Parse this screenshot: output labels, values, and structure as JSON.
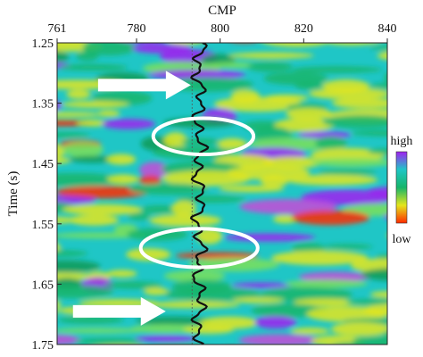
{
  "chart_data": {
    "type": "heatmap",
    "title": "",
    "xlabel": "CMP",
    "ylabel": "Time (s)",
    "xlim": [
      761,
      840
    ],
    "ylim": [
      1.25,
      1.75
    ],
    "y_inverted": true,
    "x_ticks": [
      "761",
      "780",
      "800",
      "820",
      "840"
    ],
    "y_ticks": [
      "1.25",
      "1.35",
      "1.45",
      "1.55",
      "1.65",
      "1.75"
    ],
    "grid": false,
    "colorbar": {
      "top_label": "high",
      "bottom_label": "low",
      "colors": [
        "#a020f0",
        "#1fc6c6",
        "#16b56a",
        "#e4e61c",
        "#ff2a00"
      ]
    },
    "well_location_cmp": 795,
    "annotations": {
      "arrows": [
        {
          "tip": [
            793,
            1.32
          ],
          "direction": "right"
        },
        {
          "tip": [
            787,
            1.695
          ],
          "direction": "right"
        }
      ],
      "ellipses": [
        {
          "center": [
            796,
            1.405
          ],
          "semi_axes": [
            12,
            0.03
          ]
        },
        {
          "center": [
            795,
            1.59
          ],
          "semi_axes": [
            14,
            0.032
          ]
        }
      ]
    }
  }
}
